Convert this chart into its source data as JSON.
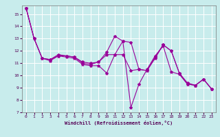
{
  "xlabel": "Windchill (Refroidissement éolien,°C)",
  "bg_color": "#c8ecec",
  "grid_color": "#ffffff",
  "line_color": "#990099",
  "xlim": [
    -0.5,
    23.5
  ],
  "ylim": [
    7,
    15.7
  ],
  "yticks": [
    7,
    8,
    9,
    10,
    11,
    12,
    13,
    14,
    15
  ],
  "xticks": [
    0,
    1,
    2,
    3,
    4,
    5,
    6,
    7,
    8,
    9,
    10,
    11,
    12,
    13,
    14,
    15,
    16,
    17,
    18,
    19,
    20,
    21,
    22,
    23
  ],
  "series": [
    [
      15.5,
      13.0,
      11.4,
      11.3,
      11.6,
      11.6,
      11.5,
      11.0,
      10.9,
      11.1,
      11.7,
      11.7,
      12.8,
      12.7,
      10.5,
      10.4,
      11.5,
      12.5,
      12.0,
      10.2,
      9.3,
      9.2,
      9.7,
      8.9
    ],
    [
      15.5,
      13.0,
      11.4,
      11.3,
      11.7,
      11.6,
      11.5,
      11.1,
      11.0,
      11.1,
      11.9,
      13.2,
      12.8,
      7.4,
      9.3,
      10.5,
      11.6,
      12.4,
      10.3,
      10.1,
      9.3,
      9.2,
      9.7,
      8.9
    ],
    [
      15.5,
      13.0,
      11.4,
      11.2,
      11.6,
      11.5,
      11.4,
      10.9,
      10.8,
      10.8,
      10.2,
      11.7,
      11.7,
      10.4,
      10.5,
      10.4,
      11.4,
      12.5,
      12.0,
      10.2,
      9.4,
      9.2,
      9.7,
      8.9
    ]
  ],
  "marker": "*",
  "markersize": 3,
  "linewidth": 0.8,
  "tick_color": "#550055",
  "label_color": "#550055"
}
